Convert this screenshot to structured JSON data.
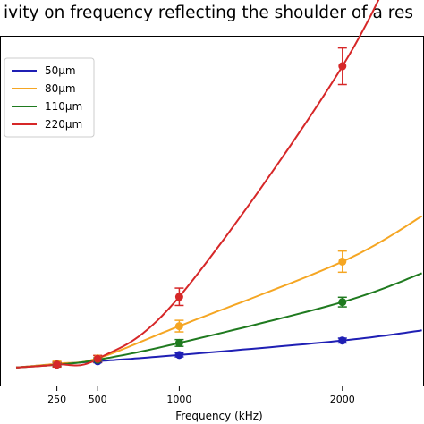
{
  "chart_data": {
    "type": "line",
    "title": "ivity on frequency reflecting the shoulder of a res",
    "xlabel": "Frequency (kHz)",
    "ylabel": "",
    "x_ticks": [
      250,
      500,
      1000,
      2000
    ],
    "xlim": [
      0,
      2500
    ],
    "ylim": [
      0,
      1.0
    ],
    "grid": false,
    "legend_position": "top-left",
    "series": [
      {
        "name": "50µm",
        "color": "#1f1fb4",
        "points": [
          {
            "x": 250,
            "y": 0.011,
            "err": 0.003
          },
          {
            "x": 500,
            "y": 0.017,
            "err": 0.003
          },
          {
            "x": 1000,
            "y": 0.03,
            "err": 0.004
          },
          {
            "x": 2000,
            "y": 0.06,
            "err": 0.005
          }
        ]
      },
      {
        "name": "80µm",
        "color": "#f5a623",
        "points": [
          {
            "x": 250,
            "y": 0.012,
            "err": 0.005
          },
          {
            "x": 500,
            "y": 0.023,
            "err": 0.006
          },
          {
            "x": 1000,
            "y": 0.09,
            "err": 0.012
          },
          {
            "x": 2000,
            "y": 0.224,
            "err": 0.022
          }
        ]
      },
      {
        "name": "110µm",
        "color": "#1f7a1f",
        "points": [
          {
            "x": 250,
            "y": 0.01,
            "err": 0.004
          },
          {
            "x": 500,
            "y": 0.02,
            "err": 0.004
          },
          {
            "x": 1000,
            "y": 0.055,
            "err": 0.007
          },
          {
            "x": 2000,
            "y": 0.14,
            "err": 0.01
          }
        ]
      },
      {
        "name": "220µm",
        "color": "#d62728",
        "points": [
          {
            "x": 250,
            "y": 0.01,
            "err": 0.005
          },
          {
            "x": 500,
            "y": 0.022,
            "err": 0.007
          },
          {
            "x": 1000,
            "y": 0.151,
            "err": 0.018
          },
          {
            "x": 2000,
            "y": 0.63,
            "err": 0.038
          }
        ]
      }
    ]
  }
}
